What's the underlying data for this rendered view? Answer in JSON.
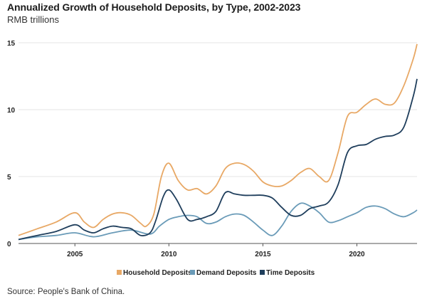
{
  "chart_data": {
    "type": "line",
    "title": "Annualized Growth of Household Deposits, by Type, 2002-2023",
    "subtitle": "RMB trillions",
    "source": "Source: People's Bank of China.",
    "xlim": [
      2002,
      2023.2
    ],
    "ylim": [
      0,
      15
    ],
    "xticks": [
      2005,
      2010,
      2015,
      2020
    ],
    "yticks": [
      0,
      5,
      10,
      15
    ],
    "grid": "horizontal",
    "legend_position": "bottom",
    "series": [
      {
        "name": "Household Deposits",
        "color": "#e8a865",
        "x": [
          2002,
          2003,
          2004,
          2005,
          2005.5,
          2006,
          2006.5,
          2007,
          2007.5,
          2008,
          2008.5,
          2008.8,
          2009.2,
          2009.6,
          2010,
          2010.5,
          2011,
          2011.5,
          2012,
          2012.5,
          2013,
          2013.5,
          2014,
          2014.5,
          2015,
          2015.5,
          2016,
          2016.5,
          2017,
          2017.5,
          2018,
          2018.5,
          2019,
          2019.5,
          2020,
          2020.5,
          2021,
          2021.5,
          2022,
          2022.5,
          2023,
          2023.2
        ],
        "y": [
          0.6,
          1.1,
          1.6,
          2.3,
          1.6,
          1.2,
          1.8,
          2.2,
          2.3,
          2.1,
          1.5,
          1.3,
          2.2,
          5.0,
          6.0,
          4.7,
          4.0,
          4.1,
          3.7,
          4.3,
          5.6,
          6.0,
          5.9,
          5.4,
          4.6,
          4.3,
          4.3,
          4.7,
          5.3,
          5.6,
          5.0,
          4.7,
          6.8,
          9.5,
          9.8,
          10.4,
          10.8,
          10.4,
          10.5,
          11.8,
          13.8,
          14.9
        ]
      },
      {
        "name": "Demand Deposits",
        "color": "#6a9bb8",
        "x": [
          2002,
          2003,
          2004,
          2005,
          2006,
          2007,
          2008,
          2009,
          2009.5,
          2010,
          2010.5,
          2011,
          2011.5,
          2012,
          2012.5,
          2013,
          2013.5,
          2014,
          2014.5,
          2015,
          2015.5,
          2016,
          2016.5,
          2017,
          2017.5,
          2018,
          2018.5,
          2019,
          2019.5,
          2020,
          2020.5,
          2021,
          2021.5,
          2022,
          2022.5,
          2023,
          2023.2
        ],
        "y": [
          0.3,
          0.5,
          0.6,
          0.8,
          0.5,
          0.8,
          1.0,
          0.7,
          1.3,
          1.8,
          2.0,
          2.1,
          2.0,
          1.5,
          1.6,
          2.0,
          2.2,
          2.1,
          1.6,
          1.0,
          0.6,
          1.3,
          2.4,
          3.0,
          2.8,
          2.3,
          1.6,
          1.7,
          2.0,
          2.3,
          2.7,
          2.8,
          2.6,
          2.2,
          2.0,
          2.3,
          2.5
        ]
      },
      {
        "name": "Time Deposits",
        "color": "#1f3e5c",
        "x": [
          2002,
          2003,
          2004,
          2005,
          2005.5,
          2006,
          2006.5,
          2007,
          2007.5,
          2008,
          2008.5,
          2009,
          2009.3,
          2009.7,
          2010,
          2010.4,
          2011,
          2011.5,
          2012,
          2012.5,
          2013,
          2013.5,
          2014,
          2014.5,
          2015,
          2015.5,
          2016,
          2016.5,
          2017,
          2017.5,
          2018,
          2018.5,
          2019,
          2019.5,
          2020,
          2020.5,
          2021,
          2021.5,
          2022,
          2022.5,
          2023,
          2023.2
        ],
        "y": [
          0.3,
          0.6,
          0.9,
          1.4,
          1.0,
          0.8,
          1.1,
          1.3,
          1.2,
          1.1,
          0.6,
          0.8,
          1.7,
          3.5,
          4.0,
          3.3,
          1.8,
          1.8,
          2.0,
          2.4,
          3.8,
          3.7,
          3.6,
          3.6,
          3.6,
          3.4,
          2.7,
          2.1,
          2.1,
          2.6,
          2.8,
          3.1,
          4.4,
          6.8,
          7.3,
          7.4,
          7.8,
          8.0,
          8.1,
          8.7,
          11.0,
          12.3
        ]
      }
    ]
  }
}
